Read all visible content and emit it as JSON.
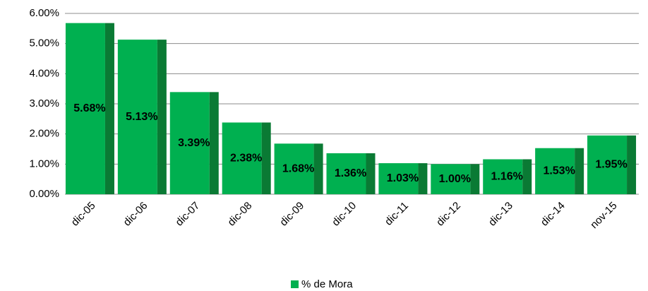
{
  "chart_data": {
    "type": "bar",
    "categories": [
      "dic-05",
      "dic-06",
      "dic-07",
      "dic-08",
      "dic-09",
      "dic-10",
      "dic-11",
      "dic-12",
      "dic-13",
      "dic-14",
      "nov-15"
    ],
    "series": [
      {
        "name": "% de Mora",
        "color": "#00b050",
        "values": [
          5.68,
          5.13,
          3.39,
          2.38,
          1.68,
          1.36,
          1.03,
          1.0,
          1.16,
          1.53,
          1.95
        ],
        "value_labels": [
          "5.68%",
          "5.13%",
          "3.39%",
          "2.38%",
          "1.68%",
          "1.36%",
          "1.03%",
          "1.00%",
          "1.16%",
          "1.53%",
          "1.95%"
        ]
      }
    ],
    "ylim": [
      0,
      6
    ],
    "yticks": [
      {
        "value": 0,
        "label": "0.00%"
      },
      {
        "value": 1,
        "label": "1.00%"
      },
      {
        "value": 2,
        "label": "2.00%"
      },
      {
        "value": 3,
        "label": "3.00%"
      },
      {
        "value": 4,
        "label": "4.00%"
      },
      {
        "value": 5,
        "label": "5.00%"
      },
      {
        "value": 6,
        "label": "6.00%"
      }
    ],
    "grid": true,
    "legend": "bottom"
  }
}
